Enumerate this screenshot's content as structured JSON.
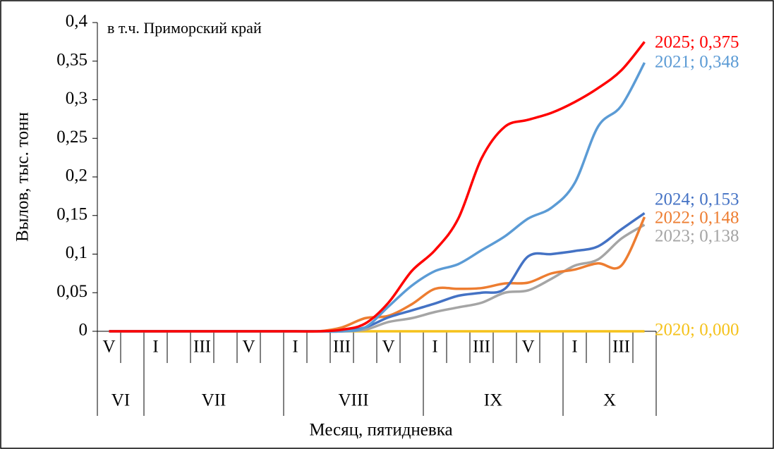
{
  "chart_data": {
    "type": "line",
    "annotation": "в т.ч. Приморский край",
    "y_label": "Вылов, тыс. тонн",
    "x_label": "Месяц, пятидневка",
    "categories": [
      "V",
      null,
      "I",
      null,
      "III",
      null,
      "V",
      null,
      "I",
      null,
      "III",
      null,
      "V",
      null,
      "I",
      null,
      "III",
      null,
      "V",
      null,
      "I",
      null,
      "III",
      null
    ],
    "groups": [
      {
        "label": "VI",
        "count": 2
      },
      {
        "label": "VII",
        "count": 6
      },
      {
        "label": "VIII",
        "count": 6
      },
      {
        "label": "IX",
        "count": 6
      },
      {
        "label": "X",
        "count": 4
      }
    ],
    "ylim": [
      0,
      0.4
    ],
    "yticks": [
      0,
      {
        "value": 0.05,
        "label": "0,05"
      },
      {
        "value": 0.1,
        "label": "0,1"
      },
      {
        "value": 0.15,
        "label": "0,15"
      },
      {
        "value": 0.2,
        "label": "0,2"
      },
      {
        "value": 0.25,
        "label": "0,25"
      },
      {
        "value": 0.3,
        "label": "0,3"
      },
      {
        "value": 0.35,
        "label": "0,35"
      },
      {
        "value": 0.4,
        "label": "0,4"
      }
    ],
    "series": [
      {
        "name": "2020",
        "color": "#f5c21b",
        "end_label": "2020; 0,000",
        "values": [
          0,
          0,
          0,
          0,
          0,
          0,
          0,
          0,
          0,
          0,
          0,
          0,
          0,
          0,
          0,
          0,
          0,
          0,
          0,
          0,
          0,
          0,
          0,
          0
        ]
      },
      {
        "name": "2023",
        "color": "#a5a5a5",
        "end_label": "2023; 0,138",
        "values": [
          0,
          0,
          0,
          0,
          0,
          0,
          0,
          0,
          0,
          0,
          0,
          0.002,
          0.012,
          0.017,
          0.025,
          0.031,
          0.037,
          0.05,
          0.053,
          0.068,
          0.085,
          0.093,
          0.12,
          0.138
        ]
      },
      {
        "name": "2022",
        "color": "#ed7d31",
        "end_label": "2022; 0,148",
        "values": [
          0,
          0,
          0,
          0,
          0,
          0,
          0,
          0,
          0,
          0,
          0.005,
          0.017,
          0.02,
          0.035,
          0.055,
          0.055,
          0.056,
          0.062,
          0.063,
          0.075,
          0.08,
          0.088,
          0.085,
          0.148
        ]
      },
      {
        "name": "2024",
        "color": "#4472c4",
        "end_label": "2024; 0,153",
        "values": [
          0,
          0,
          0,
          0,
          0,
          0,
          0,
          0,
          0,
          0,
          0,
          0.005,
          0.018,
          0.027,
          0.036,
          0.046,
          0.05,
          0.055,
          0.097,
          0.1,
          0.104,
          0.11,
          0.132,
          0.153
        ]
      },
      {
        "name": "2021",
        "color": "#5b9bd5",
        "end_label": "2021; 0,348",
        "values": [
          0,
          0,
          0,
          0,
          0,
          0,
          0,
          0,
          0,
          0,
          0,
          0.005,
          0.032,
          0.059,
          0.078,
          0.087,
          0.105,
          0.123,
          0.146,
          0.16,
          0.192,
          0.265,
          0.292,
          0.348
        ]
      },
      {
        "name": "2025",
        "color": "#ff0000",
        "end_label": "2025; 0,375",
        "values": [
          0,
          0,
          0,
          0,
          0,
          0,
          0,
          0,
          0,
          0,
          0.002,
          0.01,
          0.037,
          0.078,
          0.105,
          0.146,
          0.224,
          0.265,
          0.274,
          0.283,
          0.297,
          0.315,
          0.338,
          0.375
        ]
      }
    ]
  }
}
